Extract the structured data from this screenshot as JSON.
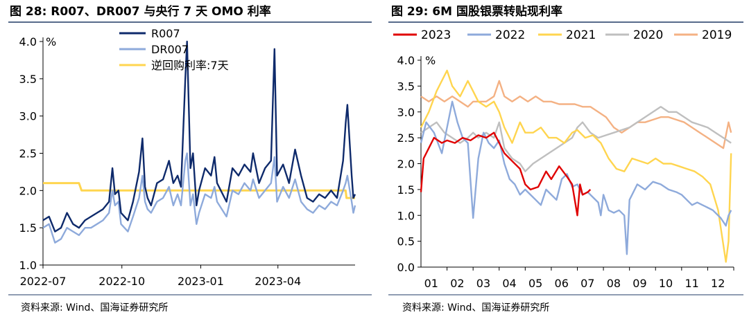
{
  "colors": {
    "rule": "#1f3864",
    "r007": "#0e2a6b",
    "dr007": "#8eaadb",
    "omo": "#ffd54f",
    "s2023": "#e00000",
    "s2022": "#8eaadb",
    "s2021": "#ffd54f",
    "s2020": "#bfbfbf",
    "s2019": "#f4b183"
  },
  "left_panel": {
    "title": "图 28:  R007、DR007 与央行 7 天 OMO 利率",
    "source": "资料来源:  Wind、国海证券研究所"
  },
  "right_panel": {
    "title": "图 29:  6M 国股银票转贴现利率",
    "source": "资料来源:  Wind、国海证券研究所"
  },
  "chart_data": [
    {
      "type": "line",
      "title": "图 28:  R007、DR007 与央行 7 天 OMO 利率",
      "unit": "%",
      "xlabel": "",
      "ylabel": "",
      "ylim": [
        1.0,
        4.0
      ],
      "yticks": [
        "1.0",
        "1.5",
        "2.0",
        "2.5",
        "3.0",
        "3.5",
        "4.0"
      ],
      "xrange": [
        "2022-07-01",
        "2023-06-30"
      ],
      "xticks": [
        "2022-07",
        "2022-10",
        "2023-01",
        "2023-04"
      ],
      "grid": false,
      "legend_position": "top",
      "series": [
        {
          "name": "R007",
          "x": [
            "2022-07-01",
            "2022-07-08",
            "2022-07-15",
            "2022-07-22",
            "2022-07-29",
            "2022-08-05",
            "2022-08-12",
            "2022-08-19",
            "2022-08-26",
            "2022-09-02",
            "2022-09-09",
            "2022-09-16",
            "2022-09-20",
            "2022-09-23",
            "2022-09-27",
            "2022-09-30",
            "2022-10-08",
            "2022-10-14",
            "2022-10-21",
            "2022-10-25",
            "2022-10-28",
            "2022-10-31",
            "2022-11-04",
            "2022-11-11",
            "2022-11-18",
            "2022-11-25",
            "2022-11-30",
            "2022-12-05",
            "2022-12-09",
            "2022-12-14",
            "2022-12-16",
            "2022-12-20",
            "2022-12-23",
            "2022-12-27",
            "2022-12-30",
            "2023-01-06",
            "2023-01-13",
            "2023-01-17",
            "2023-01-20",
            "2023-01-31",
            "2023-02-07",
            "2023-02-14",
            "2023-02-21",
            "2023-02-28",
            "2023-03-03",
            "2023-03-10",
            "2023-03-17",
            "2023-03-24",
            "2023-03-28",
            "2023-03-31",
            "2023-04-07",
            "2023-04-14",
            "2023-04-21",
            "2023-04-28",
            "2023-05-05",
            "2023-05-12",
            "2023-05-19",
            "2023-05-26",
            "2023-06-02",
            "2023-06-09",
            "2023-06-16",
            "2023-06-19",
            "2023-06-21",
            "2023-06-26",
            "2023-06-28",
            "2023-06-30"
          ],
          "values": [
            1.6,
            1.65,
            1.45,
            1.5,
            1.7,
            1.55,
            1.5,
            1.6,
            1.65,
            1.7,
            1.75,
            1.85,
            2.3,
            1.95,
            2.0,
            1.7,
            1.6,
            1.85,
            2.25,
            2.7,
            2.05,
            1.9,
            1.8,
            2.1,
            2.15,
            2.4,
            2.1,
            2.2,
            2.05,
            3.5,
            4.0,
            2.3,
            2.5,
            1.8,
            2.0,
            2.3,
            2.2,
            2.45,
            2.1,
            1.85,
            2.3,
            2.2,
            2.35,
            2.25,
            2.5,
            2.1,
            2.3,
            2.4,
            3.9,
            2.2,
            2.35,
            2.1,
            2.55,
            2.2,
            1.9,
            1.85,
            1.95,
            1.9,
            2.0,
            1.9,
            2.4,
            2.9,
            3.15,
            2.2,
            1.9,
            1.95
          ]
        },
        {
          "name": "DR007",
          "x": [
            "2022-07-01",
            "2022-07-08",
            "2022-07-15",
            "2022-07-22",
            "2022-07-29",
            "2022-08-05",
            "2022-08-12",
            "2022-08-19",
            "2022-08-26",
            "2022-09-02",
            "2022-09-09",
            "2022-09-16",
            "2022-09-20",
            "2022-09-23",
            "2022-09-27",
            "2022-09-30",
            "2022-10-08",
            "2022-10-14",
            "2022-10-21",
            "2022-10-25",
            "2022-10-28",
            "2022-10-31",
            "2022-11-04",
            "2022-11-11",
            "2022-11-18",
            "2022-11-25",
            "2022-11-30",
            "2022-12-05",
            "2022-12-09",
            "2022-12-14",
            "2022-12-16",
            "2022-12-20",
            "2022-12-23",
            "2022-12-27",
            "2022-12-30",
            "2023-01-06",
            "2023-01-13",
            "2023-01-17",
            "2023-01-20",
            "2023-01-31",
            "2023-02-07",
            "2023-02-14",
            "2023-02-21",
            "2023-02-28",
            "2023-03-03",
            "2023-03-10",
            "2023-03-17",
            "2023-03-24",
            "2023-03-28",
            "2023-03-31",
            "2023-04-07",
            "2023-04-14",
            "2023-04-21",
            "2023-04-28",
            "2023-05-05",
            "2023-05-12",
            "2023-05-19",
            "2023-05-26",
            "2023-06-02",
            "2023-06-09",
            "2023-06-16",
            "2023-06-19",
            "2023-06-21",
            "2023-06-26",
            "2023-06-28",
            "2023-06-30"
          ],
          "values": [
            1.5,
            1.55,
            1.3,
            1.35,
            1.5,
            1.45,
            1.4,
            1.5,
            1.5,
            1.55,
            1.6,
            1.7,
            2.0,
            1.8,
            1.85,
            1.55,
            1.45,
            1.65,
            1.9,
            2.2,
            1.85,
            1.75,
            1.7,
            1.85,
            1.9,
            2.05,
            1.8,
            1.95,
            1.8,
            2.4,
            2.5,
            1.8,
            1.95,
            1.55,
            1.7,
            1.95,
            1.9,
            2.05,
            1.85,
            1.65,
            2.0,
            1.95,
            2.1,
            2.0,
            2.15,
            1.9,
            2.0,
            2.1,
            2.45,
            1.85,
            2.05,
            1.9,
            2.15,
            1.85,
            1.75,
            1.7,
            1.8,
            1.75,
            1.85,
            1.8,
            2.0,
            2.1,
            2.2,
            1.85,
            1.7,
            1.8
          ]
        },
        {
          "name": "逆回购利率:7天",
          "x": [
            "2022-07-01",
            "2022-08-12",
            "2022-08-15",
            "2023-06-19",
            "2023-06-20",
            "2023-06-30"
          ],
          "values": [
            2.1,
            2.1,
            2.0,
            2.0,
            1.9,
            1.9
          ]
        }
      ]
    },
    {
      "type": "line",
      "title": "图 29:  6M 国股银票转贴现利率",
      "unit": "%",
      "xlabel": "",
      "ylabel": "",
      "ylim": [
        0.0,
        4.0
      ],
      "yticks": [
        "0.0",
        "0.5",
        "1.0",
        "1.5",
        "2.0",
        "2.5",
        "3.0",
        "3.5",
        "4.0"
      ],
      "xlim": [
        1,
        13
      ],
      "xticks": [
        "01",
        "02",
        "03",
        "04",
        "05",
        "06",
        "07",
        "08",
        "09",
        "10",
        "11",
        "12"
      ],
      "grid": false,
      "legend_position": "top",
      "series": [
        {
          "name": "2023",
          "x": [
            1.0,
            1.1,
            1.3,
            1.5,
            1.8,
            2.0,
            2.3,
            2.6,
            2.9,
            3.2,
            3.5,
            3.8,
            4.0,
            4.2,
            4.5,
            4.8,
            5.0,
            5.2,
            5.5,
            5.8,
            6.0,
            6.3,
            6.6,
            6.8,
            7.0,
            7.1,
            7.2,
            7.4,
            7.5
          ],
          "values": [
            1.45,
            2.1,
            2.3,
            2.5,
            2.4,
            2.45,
            2.4,
            2.5,
            2.45,
            2.55,
            2.5,
            2.6,
            2.4,
            2.2,
            2.05,
            1.9,
            1.6,
            1.5,
            1.55,
            1.85,
            1.7,
            1.95,
            1.75,
            1.6,
            1.0,
            1.6,
            1.4,
            1.45,
            1.5
          ]
        },
        {
          "name": "2022",
          "x": [
            1.0,
            1.2,
            1.5,
            1.8,
            2.0,
            2.2,
            2.4,
            2.6,
            2.8,
            3.0,
            3.2,
            3.4,
            3.6,
            3.8,
            4.0,
            4.2,
            4.4,
            4.6,
            4.8,
            5.0,
            5.2,
            5.4,
            5.6,
            5.8,
            6.0,
            6.2,
            6.4,
            6.6,
            6.8,
            7.0,
            7.2,
            7.4,
            7.6,
            7.8,
            7.9,
            8.0,
            8.2,
            8.4,
            8.6,
            8.8,
            8.9,
            9.0,
            9.3,
            9.6,
            9.9,
            10.2,
            10.5,
            10.8,
            11.0,
            11.2,
            11.4,
            11.6,
            11.8,
            12.0,
            12.2,
            12.5,
            12.7,
            12.8,
            12.9
          ],
          "values": [
            2.4,
            2.8,
            2.6,
            2.2,
            2.7,
            3.2,
            2.8,
            2.5,
            2.4,
            0.95,
            2.1,
            2.6,
            2.4,
            2.3,
            2.45,
            2.0,
            1.7,
            1.6,
            1.4,
            1.5,
            1.4,
            1.3,
            1.2,
            1.5,
            1.4,
            1.3,
            1.7,
            1.8,
            1.55,
            1.6,
            1.4,
            1.45,
            1.35,
            1.25,
            1.0,
            1.4,
            1.1,
            1.05,
            1.1,
            1.0,
            0.25,
            1.3,
            1.6,
            1.5,
            1.65,
            1.6,
            1.5,
            1.45,
            1.4,
            1.3,
            1.2,
            1.25,
            1.2,
            1.15,
            1.1,
            0.95,
            0.8,
            1.0,
            1.1
          ]
        },
        {
          "name": "2021",
          "x": [
            1.0,
            1.3,
            1.6,
            1.9,
            2.0,
            2.2,
            2.5,
            2.8,
            3.0,
            3.2,
            3.5,
            3.8,
            4.0,
            4.2,
            4.5,
            4.8,
            5.0,
            5.3,
            5.6,
            5.9,
            6.2,
            6.5,
            6.8,
            7.0,
            7.3,
            7.6,
            7.9,
            8.2,
            8.5,
            8.8,
            9.1,
            9.4,
            9.7,
            10.0,
            10.3,
            10.6,
            10.9,
            11.2,
            11.5,
            11.8,
            12.1,
            12.4,
            12.7,
            12.8,
            12.9
          ],
          "values": [
            2.7,
            3.0,
            3.4,
            3.7,
            3.8,
            3.5,
            3.3,
            3.6,
            3.4,
            3.2,
            3.1,
            3.2,
            3.0,
            2.7,
            2.4,
            2.8,
            2.6,
            2.6,
            2.7,
            2.5,
            2.5,
            2.4,
            2.6,
            2.65,
            2.5,
            2.55,
            2.4,
            2.1,
            1.9,
            1.85,
            2.1,
            2.05,
            2.0,
            2.1,
            2.0,
            2.0,
            1.95,
            1.9,
            1.85,
            1.75,
            1.6,
            1.1,
            0.1,
            0.5,
            2.2
          ]
        },
        {
          "name": "2020",
          "x": [
            1.0,
            1.3,
            1.6,
            1.9,
            2.2,
            2.5,
            2.8,
            3.0,
            3.2,
            3.5,
            3.8,
            4.0,
            4.2,
            4.5,
            4.8,
            5.0,
            5.3,
            5.6,
            5.9,
            6.2,
            6.5,
            6.8,
            7.0,
            7.2,
            7.5,
            7.8,
            8.1,
            8.4,
            8.7,
            9.0,
            9.3,
            9.6,
            9.9,
            10.2,
            10.5,
            10.8,
            11.1,
            11.4,
            11.7,
            12.0,
            12.3,
            12.6,
            12.9
          ],
          "values": [
            2.6,
            2.7,
            2.8,
            2.6,
            2.5,
            2.4,
            2.5,
            2.6,
            2.5,
            2.6,
            2.5,
            2.8,
            2.3,
            2.1,
            2.0,
            1.85,
            2.0,
            2.1,
            2.2,
            2.3,
            2.4,
            2.5,
            2.7,
            2.8,
            2.6,
            2.5,
            2.55,
            2.6,
            2.65,
            2.7,
            2.8,
            2.9,
            3.0,
            3.1,
            3.0,
            3.0,
            2.9,
            2.8,
            2.75,
            2.7,
            2.6,
            2.5,
            2.4
          ]
        },
        {
          "name": "2019",
          "x": [
            1.0,
            1.3,
            1.6,
            1.9,
            2.2,
            2.5,
            2.8,
            3.0,
            3.2,
            3.5,
            3.8,
            4.0,
            4.2,
            4.5,
            4.8,
            5.1,
            5.4,
            5.7,
            6.0,
            6.3,
            6.6,
            6.9,
            7.2,
            7.5,
            7.8,
            8.1,
            8.4,
            8.7,
            9.0,
            9.3,
            9.6,
            9.9,
            10.2,
            10.5,
            10.8,
            11.1,
            11.4,
            11.7,
            12.0,
            12.3,
            12.6,
            12.8,
            12.9
          ],
          "values": [
            3.3,
            3.2,
            3.3,
            3.2,
            3.3,
            3.2,
            3.1,
            3.2,
            3.2,
            3.2,
            3.3,
            3.6,
            3.3,
            3.2,
            3.3,
            3.2,
            3.3,
            3.2,
            3.2,
            3.15,
            3.15,
            3.15,
            3.1,
            3.1,
            3.0,
            2.9,
            2.7,
            2.6,
            2.7,
            2.8,
            2.8,
            2.85,
            2.9,
            2.9,
            2.85,
            2.8,
            2.7,
            2.6,
            2.5,
            2.4,
            2.3,
            2.8,
            2.6
          ]
        }
      ]
    }
  ]
}
